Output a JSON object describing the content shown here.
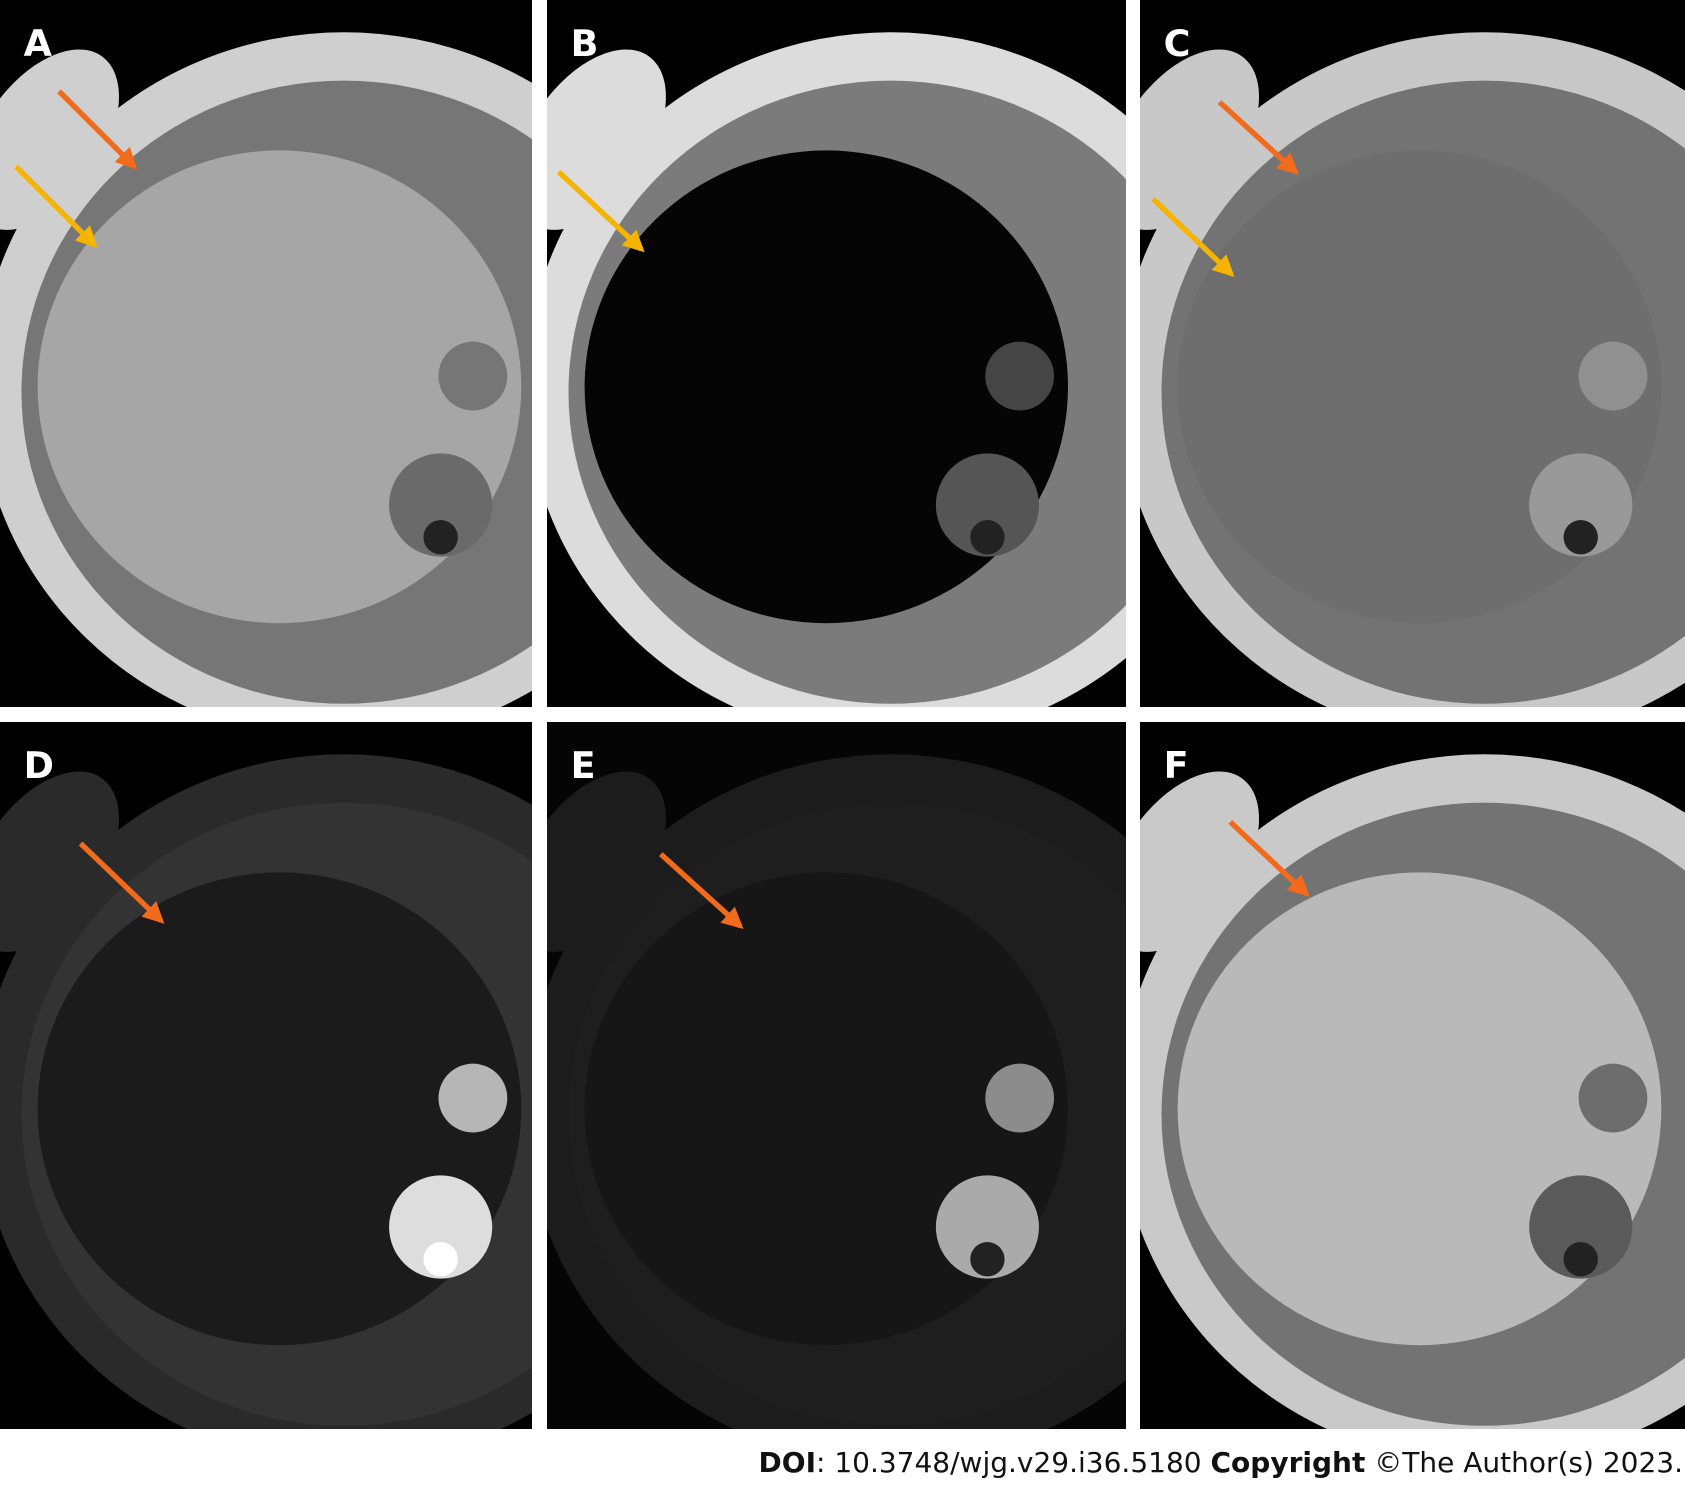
{
  "panels": [
    {
      "label": "A"
    },
    {
      "label": "B"
    },
    {
      "label": "C"
    },
    {
      "label": "D"
    },
    {
      "label": "E"
    },
    {
      "label": "F"
    }
  ],
  "footer": {
    "doi_label": "DOI",
    "doi": ": 10.3748/wjg.v29.i36.5180",
    "copyright_label": "Copyright",
    "copyright": "©The Author(s) 2023."
  }
}
